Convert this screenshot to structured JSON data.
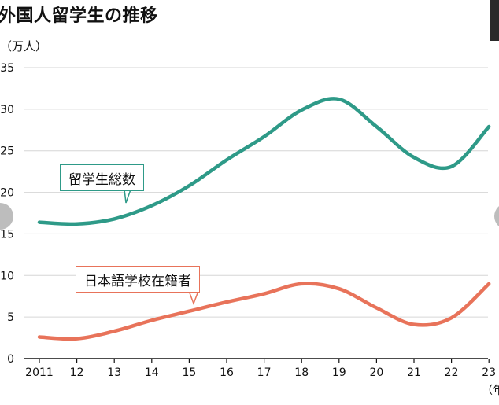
{
  "title": "外国人留学生の推移",
  "y_unit": "（万人）",
  "x_unit": "（年",
  "colors": {
    "total": "#2e9a88",
    "japanese_school": "#e8735a",
    "grid": "#d6d6d6",
    "axis": "#111111"
  },
  "chart_data": {
    "type": "line",
    "categories": [
      "2011",
      "12",
      "13",
      "14",
      "15",
      "16",
      "17",
      "18",
      "19",
      "20",
      "21",
      "22",
      "23"
    ],
    "ylim": [
      0,
      35
    ],
    "yticks": [
      0,
      5,
      10,
      15,
      20,
      25,
      30,
      35
    ],
    "grid": true,
    "series": [
      {
        "name": "留学生総数",
        "values": [
          16.4,
          16.2,
          16.8,
          18.4,
          20.8,
          23.9,
          26.7,
          29.9,
          31.2,
          27.9,
          24.2,
          23.1,
          27.9
        ]
      },
      {
        "name": "日本語学校在籍者",
        "values": [
          2.6,
          2.4,
          3.3,
          4.6,
          5.7,
          6.8,
          7.8,
          9.0,
          8.4,
          6.1,
          4.1,
          4.9,
          9.0
        ]
      }
    ]
  }
}
